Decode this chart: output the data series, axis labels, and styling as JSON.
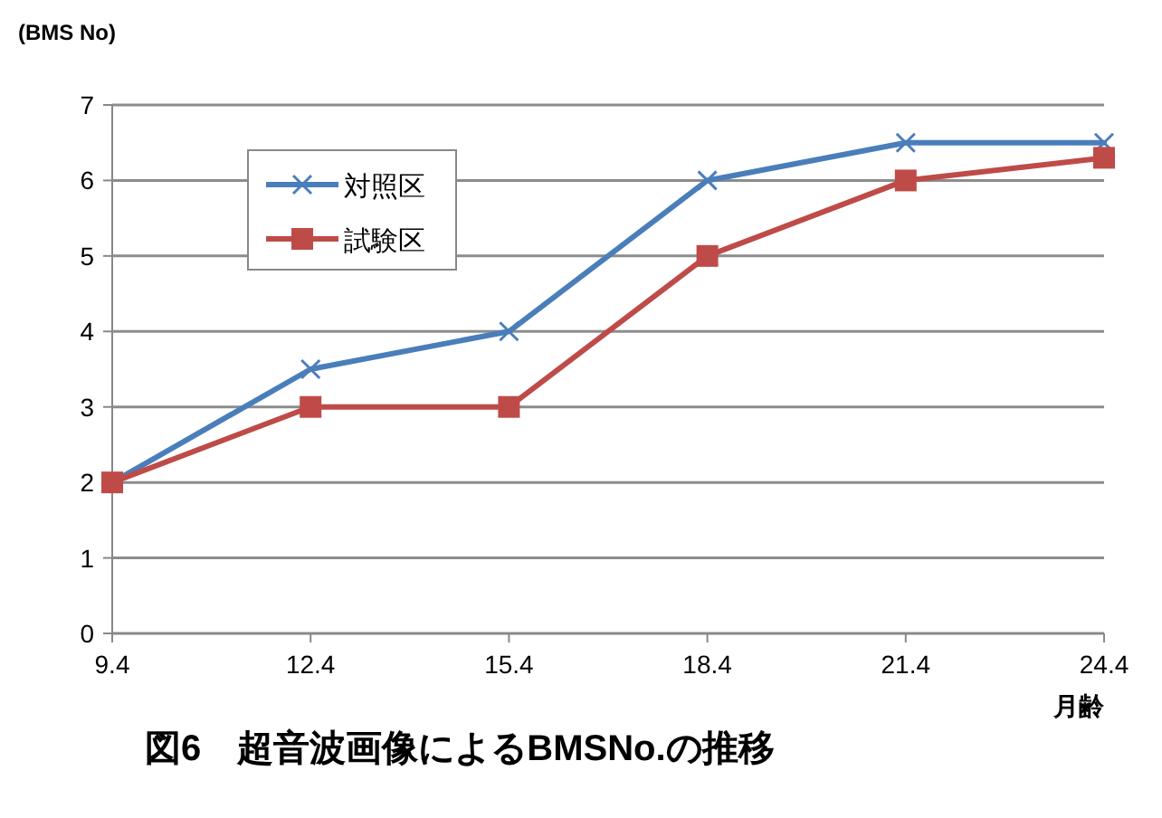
{
  "chart_data": {
    "type": "line",
    "title": "図6　超音波画像によるBMSNo.の推移",
    "ylabel": "(BMS No)",
    "xlabel": "月齢",
    "x": [
      9.4,
      12.4,
      15.4,
      18.4,
      21.4,
      24.4
    ],
    "xlim": [
      9.4,
      24.4
    ],
    "xticks": [
      9.4,
      12.4,
      15.4,
      18.4,
      21.4,
      24.4
    ],
    "ylim": [
      0,
      7
    ],
    "yticks": [
      0,
      1,
      2,
      3,
      4,
      5,
      6,
      7
    ],
    "grid": "y",
    "legend": "top left",
    "series": [
      {
        "name": "対照区",
        "color": "#4a7ebb",
        "marker": "cross",
        "values": [
          2,
          3.5,
          4,
          6,
          6.5,
          6.5
        ]
      },
      {
        "name": "試験区",
        "color": "#be4b48",
        "marker": "square",
        "values": [
          2,
          3,
          3,
          5,
          6,
          6.3
        ]
      }
    ]
  }
}
